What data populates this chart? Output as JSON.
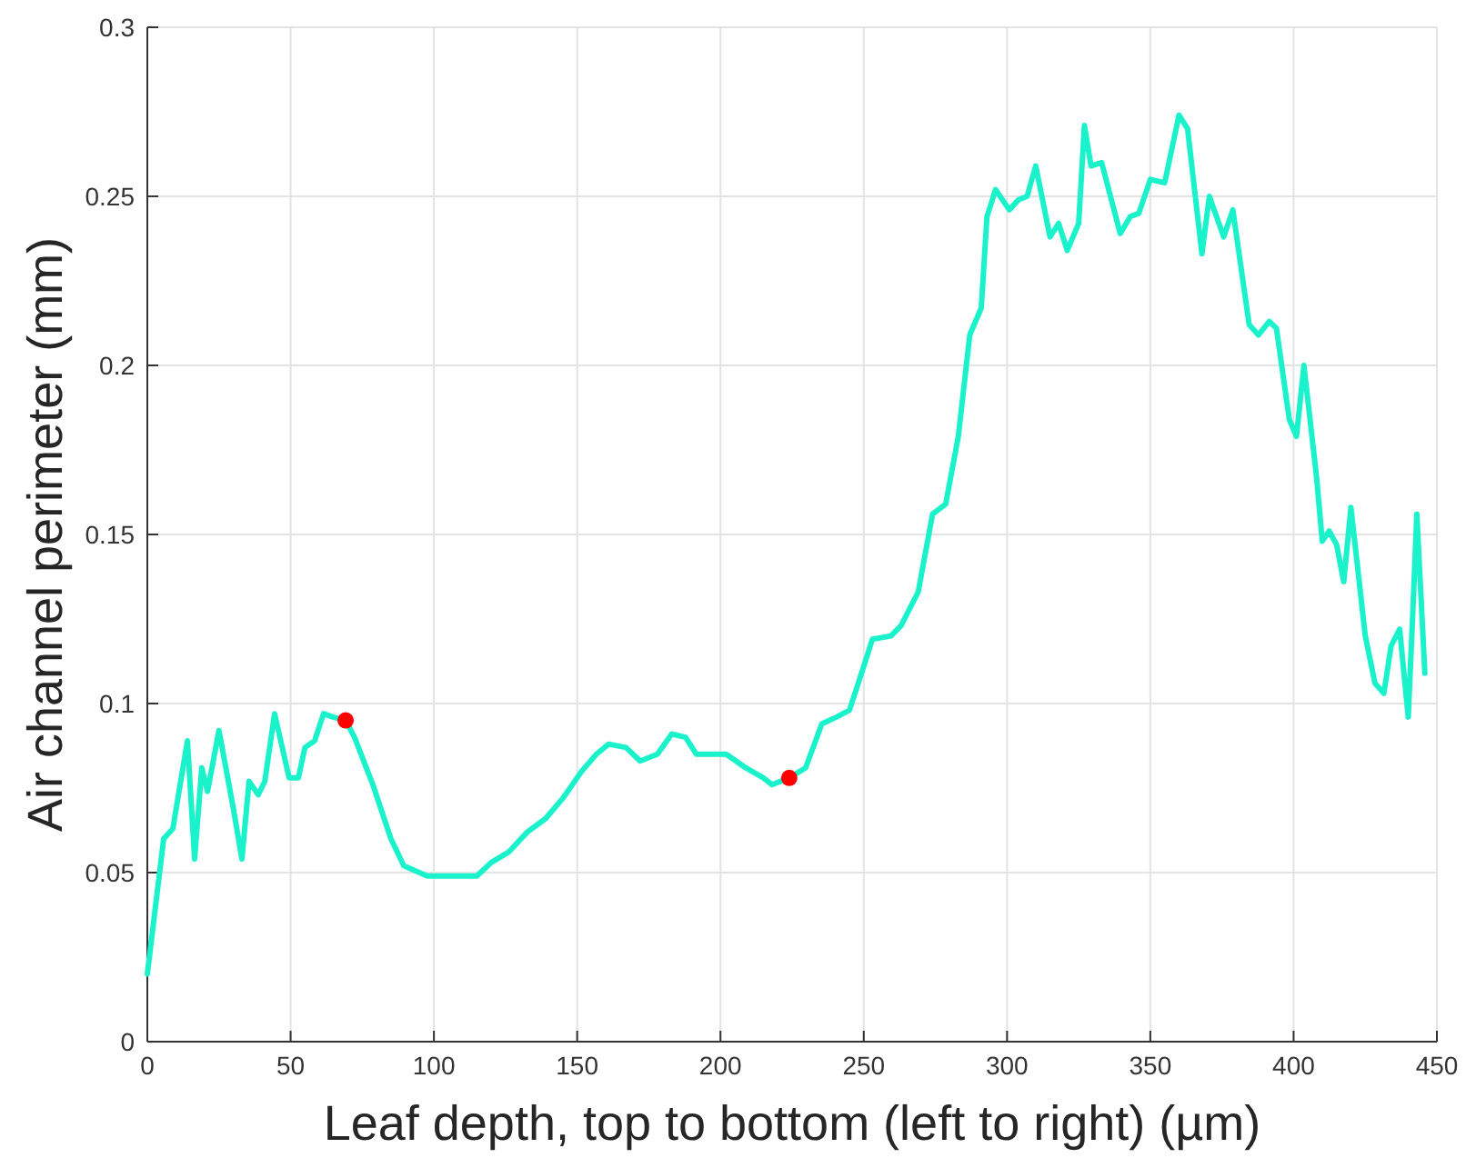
{
  "chart_data": {
    "type": "line",
    "xlabel": "Leaf depth, top to bottom (left to right) (µm)",
    "ylabel": "Air channel perimeter (mm)",
    "xlim": [
      0,
      450
    ],
    "xticks": [
      0,
      50,
      100,
      150,
      200,
      250,
      300,
      350,
      400,
      450
    ],
    "ylim": [
      0,
      0.3
    ],
    "yticks": [
      0,
      0.05,
      0.1,
      0.15,
      0.2,
      0.25,
      0.3
    ],
    "grid": true,
    "series": [
      {
        "color": "#1af2cc",
        "line_style": "solid",
        "x": [
          0,
          5.7,
          8.9,
          14,
          16.5,
          19,
          21,
          25,
          29.8,
          33,
          35.5,
          38.7,
          41,
          44.4,
          49.5,
          52.7,
          55,
          58.4,
          61.5,
          64.7,
          69.2,
          72.3,
          78.7,
          85,
          89.5,
          97.7,
          110,
          115,
          120,
          126,
          132.6,
          139,
          145,
          151.6,
          156.7,
          161,
          167,
          172,
          178,
          183,
          187.8,
          191.6,
          198,
          202,
          208.8,
          215,
          218,
          224,
          229.7,
          235.4,
          240.5,
          245,
          250,
          253,
          259.5,
          263,
          269,
          274,
          278.6,
          283,
          287,
          291,
          293,
          296,
          300.8,
          304,
          307,
          310,
          315,
          318,
          321,
          325,
          327,
          329.3,
          333,
          339.5,
          343,
          346,
          350,
          355,
          360,
          363,
          368,
          370.6,
          375.6,
          378.8,
          384.5,
          387.7,
          391.5,
          394,
          398.5,
          401,
          403.6,
          408,
          410,
          412.4,
          415,
          417.5,
          420,
          425,
          428.4,
          431.5,
          434,
          437,
          440,
          441.5,
          443,
          445.8
        ],
        "values": [
          0.02,
          0.06,
          0.063,
          0.089,
          0.054,
          0.081,
          0.074,
          0.092,
          0.07,
          0.054,
          0.077,
          0.073,
          0.077,
          0.097,
          0.078,
          0.078,
          0.087,
          0.089,
          0.097,
          0.096,
          0.095,
          0.09,
          0.076,
          0.06,
          0.052,
          0.049,
          0.049,
          0.049,
          0.053,
          0.056,
          0.062,
          0.066,
          0.072,
          0.08,
          0.085,
          0.088,
          0.087,
          0.083,
          0.085,
          0.091,
          0.09,
          0.085,
          0.085,
          0.085,
          0.081,
          0.078,
          0.076,
          0.078,
          0.081,
          0.094,
          0.096,
          0.098,
          0.111,
          0.119,
          0.12,
          0.123,
          0.133,
          0.156,
          0.159,
          0.179,
          0.209,
          0.217,
          0.244,
          0.252,
          0.246,
          0.249,
          0.25,
          0.259,
          0.238,
          0.242,
          0.234,
          0.242,
          0.271,
          0.259,
          0.26,
          0.239,
          0.244,
          0.245,
          0.255,
          0.254,
          0.274,
          0.27,
          0.233,
          0.25,
          0.238,
          0.246,
          0.212,
          0.209,
          0.213,
          0.211,
          0.184,
          0.179,
          0.2,
          0.167,
          0.148,
          0.151,
          0.147,
          0.136,
          0.158,
          0.12,
          0.106,
          0.103,
          0.117,
          0.122,
          0.096,
          0.125,
          0.156,
          0.109
        ]
      },
      {
        "type": "scatter",
        "color": "#ff0000",
        "marker": "circle",
        "x": [
          69.2,
          224
        ],
        "values": [
          0.095,
          0.078
        ]
      }
    ]
  }
}
